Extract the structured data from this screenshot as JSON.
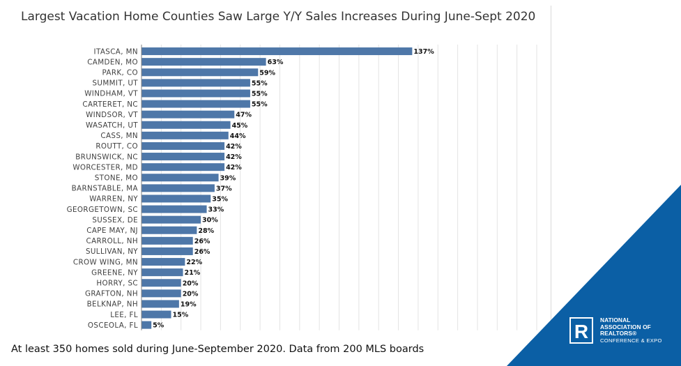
{
  "chart_data": {
    "type": "bar",
    "orientation": "horizontal",
    "title": "Largest Vacation Home Counties Saw Large Y/Y Sales Increases During June-Sept 2020",
    "categories": [
      "ITASCA, MN",
      "CAMDEN, MO",
      "PARK, CO",
      "SUMMIT, UT",
      "WINDHAM, VT",
      "CARTERET, NC",
      "WINDSOR, VT",
      "WASATCH, UT",
      "CASS, MN",
      "ROUTT, CO",
      "BRUNSWICK, NC",
      "WORCESTER, MD",
      "STONE, MO",
      "BARNSTABLE, MA",
      "WARREN, NY",
      "GEORGETOWN, SC",
      "SUSSEX, DE",
      "CAPE MAY, NJ",
      "CARROLL, NH",
      "SULLIVAN, NY",
      "CROW WING, MN",
      "GREENE, NY",
      "HORRY, SC",
      "GRAFTON, NH",
      "BELKNAP, NH",
      "LEE, FL",
      "OSCEOLA, FL"
    ],
    "values": [
      137,
      63,
      59,
      55,
      55,
      55,
      47,
      45,
      44,
      42,
      42,
      42,
      39,
      37,
      35,
      33,
      30,
      28,
      26,
      26,
      22,
      21,
      20,
      20,
      19,
      15,
      5
    ],
    "value_labels": [
      "137%",
      "63%",
      "59%",
      "55%",
      "55%",
      "55%",
      "47%",
      "45%",
      "44%",
      "42%",
      "42%",
      "42%",
      "39%",
      "37%",
      "35%",
      "33%",
      "30%",
      "28%",
      "26%",
      "26%",
      "22%",
      "21%",
      "20%",
      "20%",
      "19%",
      "15%",
      "5%"
    ],
    "xlim": [
      0,
      200
    ],
    "grid": true,
    "bar_color": "#4e77a8",
    "legend": "none"
  },
  "footnote": "At least 350 homes sold during June-September 2020. Data from 200 MLS boards",
  "branding": {
    "line1": "NATIONAL",
    "line2": "ASSOCIATION OF",
    "line3": "REALTORS®",
    "line4": "CONFERENCE & EXPO",
    "mark": "R",
    "corner_color": "#0b5fa5"
  }
}
